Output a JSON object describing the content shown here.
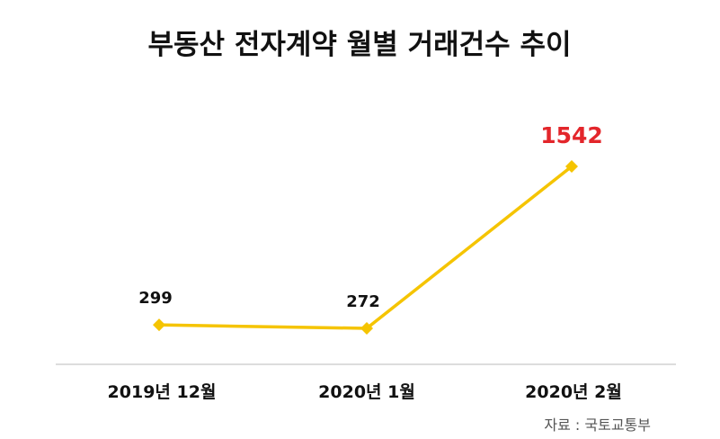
{
  "chart_data": {
    "type": "line",
    "title": "부동산 전자계약 월별 거래건수 추이",
    "categories": [
      "2019년 12월",
      "2020년 1월",
      "2020년 2월"
    ],
    "values": [
      299,
      272,
      1542
    ],
    "data_labels": [
      "299",
      "272",
      "1542"
    ],
    "highlight_index": 2,
    "xlabel": "",
    "ylabel": "",
    "ylim": [
      0,
      1700
    ],
    "grid": false,
    "legend": "none",
    "colors": {
      "line": "#f5c400",
      "marker": "#f5c400",
      "highlight_label": "#e3262b",
      "axis": "#bbbbbb",
      "text": "#111111"
    }
  },
  "source": "자료 : 국토교통부"
}
